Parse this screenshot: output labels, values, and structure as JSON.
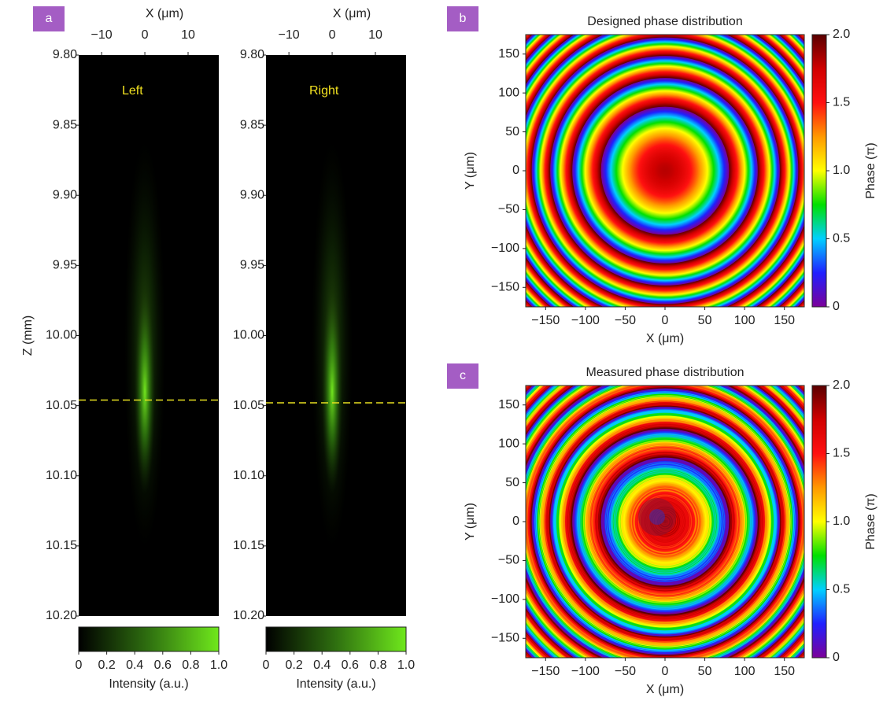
{
  "chart_data": [
    {
      "type": "intensity-map",
      "panel_label": "a",
      "annotation": "Left",
      "xlabel": "X (μm)",
      "ylabel": "Z (mm)",
      "xlim": [
        -15.3,
        17.1
      ],
      "xticks": [
        {
          "value": -10,
          "label": "−10"
        },
        0,
        10
      ],
      "ylim": [
        10.2,
        9.8
      ],
      "yticks": [
        {
          "value": 9.8,
          "label": "9.80"
        },
        {
          "value": 9.85,
          "label": "9.85"
        },
        {
          "value": 9.9,
          "label": "9.90"
        },
        {
          "value": 9.95,
          "label": "9.95"
        },
        {
          "value": 10.0,
          "label": "10.00"
        },
        {
          "value": 10.05,
          "label": "10.05"
        },
        {
          "value": 10.1,
          "label": "10.10"
        },
        {
          "value": 10.15,
          "label": "10.15"
        },
        {
          "value": 10.2,
          "label": "10.20"
        }
      ],
      "focus_line": 10.046,
      "colorbar": {
        "label": "Intensity (a.u.)",
        "lim": [
          0,
          1
        ],
        "ticks": [
          0,
          0.2,
          0.4,
          0.6,
          0.8,
          {
            "value": 1,
            "label": "1.0"
          }
        ]
      }
    },
    {
      "type": "intensity-map",
      "annotation": "Right",
      "xlabel": "X (μm)",
      "xlim": [
        -15.3,
        17.1
      ],
      "xticks": [
        {
          "value": -10,
          "label": "−10"
        },
        0,
        10
      ],
      "ylim": [
        10.2,
        9.8
      ],
      "yticks": [
        {
          "value": 9.8,
          "label": "9.80"
        },
        {
          "value": 9.85,
          "label": "9.85"
        },
        {
          "value": 9.9,
          "label": "9.90"
        },
        {
          "value": 9.95,
          "label": "9.95"
        },
        {
          "value": 10.0,
          "label": "10.00"
        },
        {
          "value": 10.05,
          "label": "10.05"
        },
        {
          "value": 10.1,
          "label": "10.10"
        },
        {
          "value": 10.15,
          "label": "10.15"
        },
        {
          "value": 10.2,
          "label": "10.20"
        }
      ],
      "focus_line": 10.048,
      "colorbar": {
        "label": "Intensity (a.u.)",
        "lim": [
          0,
          1
        ],
        "ticks": [
          0,
          0.2,
          0.4,
          0.6,
          0.8,
          {
            "value": 1,
            "label": "1.0"
          }
        ]
      }
    },
    {
      "type": "phase-map",
      "panel_label": "b",
      "title": "Designed phase distribution",
      "xlabel": "X (μm)",
      "ylabel": "Y (μm)",
      "xlim": [
        -175,
        175
      ],
      "xticks": [
        {
          "value": -150,
          "label": "−150"
        },
        {
          "value": -100,
          "label": "−100"
        },
        {
          "value": -50,
          "label": "−50"
        },
        0,
        50,
        100,
        150
      ],
      "ylim": [
        -175,
        175
      ],
      "yticks": [
        {
          "value": -150,
          "label": "−150"
        },
        {
          "value": -100,
          "label": "−100"
        },
        {
          "value": -50,
          "label": "−50"
        },
        0,
        50,
        100,
        150
      ],
      "measured": false,
      "colorbar": {
        "label": "Phase (π)",
        "lim": [
          0,
          2
        ],
        "ticks": [
          0,
          0.5,
          {
            "value": 1,
            "label": "1.0"
          },
          1.5,
          {
            "value": 2,
            "label": "2.0"
          }
        ]
      }
    },
    {
      "type": "phase-map",
      "panel_label": "c",
      "title": "Measured phase distribution",
      "xlabel": "X (μm)",
      "ylabel": "Y (μm)",
      "xlim": [
        -175,
        175
      ],
      "xticks": [
        {
          "value": -150,
          "label": "−150"
        },
        {
          "value": -100,
          "label": "−100"
        },
        {
          "value": -50,
          "label": "−50"
        },
        0,
        50,
        100,
        150
      ],
      "ylim": [
        -175,
        175
      ],
      "yticks": [
        {
          "value": -150,
          "label": "−150"
        },
        {
          "value": -100,
          "label": "−100"
        },
        {
          "value": -50,
          "label": "−50"
        },
        0,
        50,
        100,
        150
      ],
      "measured": true,
      "colorbar": {
        "label": "Phase (π)",
        "lim": [
          0,
          2
        ],
        "ticks": [
          0,
          0.5,
          {
            "value": 1,
            "label": "1.0"
          },
          1.5,
          {
            "value": 2,
            "label": "2.0"
          }
        ]
      }
    }
  ]
}
